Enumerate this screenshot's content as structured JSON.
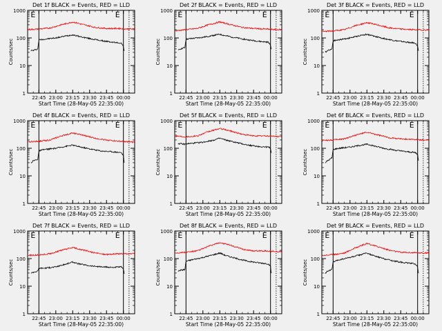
{
  "colors": {
    "background": "#f0f0f0",
    "events": "#000000",
    "lld": "#ff0000",
    "axis": "#000000"
  },
  "chart_data": [
    {
      "type": "line",
      "title": "Det 1f BLACK = Events, RED = LLD",
      "xlabel": "Start Time (28-May-05 22:35:00)",
      "ylabel": "Counts/sec",
      "y_scale": "log",
      "ylim": [
        1,
        1000
      ],
      "xlim": [
        "22:35",
        "00:10"
      ],
      "x_ticks": [
        "22:45",
        "23:00",
        "23:15",
        "23:30",
        "23:45",
        "00:00"
      ],
      "y_ticks": [
        "1",
        "10",
        "100",
        "1000"
      ],
      "markers": [
        {
          "label": "E",
          "time": "22:45",
          "style": "solid"
        },
        {
          "label": "E",
          "time": "00:00",
          "style": "solid"
        },
        {
          "label": "",
          "time": "00:05",
          "style": "dotted"
        }
      ],
      "series": [
        {
          "name": "Events",
          "color": "#000000",
          "x": [
            "22:38",
            "22:40",
            "22:44",
            "22:45",
            "22:50",
            "23:00",
            "23:10",
            "23:15",
            "23:20",
            "23:30",
            "23:40",
            "23:50",
            "23:58",
            "24:00",
            "24:01"
          ],
          "y": [
            35,
            35,
            40,
            85,
            90,
            100,
            120,
            130,
            115,
            95,
            80,
            70,
            65,
            50,
            30
          ]
        },
        {
          "name": "LLD",
          "color": "#ff0000",
          "x": [
            "22:35",
            "22:45",
            "22:55",
            "23:05",
            "23:15",
            "23:25",
            "23:35",
            "23:45",
            "23:55",
            "00:05",
            "00:10"
          ],
          "y": [
            200,
            210,
            230,
            300,
            380,
            300,
            240,
            220,
            220,
            210,
            210
          ]
        }
      ]
    },
    {
      "type": "line",
      "title": "Det 2f BLACK = Events, RED = LLD",
      "xlabel": "Start Time (28-May-05 22:35:00)",
      "ylabel": "Counts/sec",
      "y_scale": "log",
      "ylim": [
        1,
        1000
      ],
      "xlim": [
        "22:35",
        "00:10"
      ],
      "x_ticks": [
        "22:45",
        "23:00",
        "23:15",
        "23:30",
        "23:45",
        "00:00"
      ],
      "y_ticks": [
        "1",
        "10",
        "100",
        "1000"
      ],
      "markers": [
        {
          "label": "E",
          "time": "22:45",
          "style": "solid"
        },
        {
          "label": "E",
          "time": "00:00",
          "style": "solid"
        },
        {
          "label": "",
          "time": "00:05",
          "style": "dotted"
        }
      ],
      "series": [
        {
          "name": "Events",
          "color": "#000000",
          "x": [
            "22:38",
            "22:40",
            "22:44",
            "22:45",
            "22:50",
            "23:00",
            "23:10",
            "23:15",
            "23:20",
            "23:30",
            "23:40",
            "23:50",
            "23:58",
            "24:00",
            "24:01"
          ],
          "y": [
            35,
            40,
            45,
            90,
            95,
            105,
            125,
            135,
            120,
            100,
            85,
            75,
            70,
            55,
            35
          ]
        },
        {
          "name": "LLD",
          "color": "#ff0000",
          "x": [
            "22:35",
            "22:45",
            "22:55",
            "23:05",
            "23:15",
            "23:25",
            "23:35",
            "23:45",
            "23:55",
            "00:05",
            "00:10"
          ],
          "y": [
            180,
            200,
            220,
            300,
            380,
            300,
            240,
            220,
            210,
            200,
            200
          ]
        }
      ]
    },
    {
      "type": "line",
      "title": "Det 3f BLACK = Events, RED = LLD",
      "xlabel": "Start Time (28-May-05 22:35:00)",
      "ylabel": "Counts/sec",
      "y_scale": "log",
      "ylim": [
        1,
        1000
      ],
      "xlim": [
        "22:35",
        "00:10"
      ],
      "x_ticks": [
        "22:45",
        "23:00",
        "23:15",
        "23:30",
        "23:45",
        "00:00"
      ],
      "y_ticks": [
        "1",
        "10",
        "100",
        "1000"
      ],
      "markers": [
        {
          "label": "E",
          "time": "22:45",
          "style": "solid"
        },
        {
          "label": "E",
          "time": "00:00",
          "style": "solid"
        },
        {
          "label": "",
          "time": "00:05",
          "style": "dotted"
        }
      ],
      "series": [
        {
          "name": "Events",
          "color": "#000000",
          "x": [
            "22:38",
            "22:40",
            "22:44",
            "22:45",
            "22:50",
            "23:00",
            "23:10",
            "23:15",
            "23:20",
            "23:30",
            "23:40",
            "23:50",
            "23:58",
            "24:00",
            "24:01"
          ],
          "y": [
            30,
            35,
            40,
            80,
            85,
            100,
            125,
            135,
            120,
            95,
            80,
            70,
            65,
            50,
            30
          ]
        },
        {
          "name": "LLD",
          "color": "#ff0000",
          "x": [
            "22:35",
            "22:45",
            "22:55",
            "23:05",
            "23:15",
            "23:25",
            "23:35",
            "23:45",
            "23:55",
            "00:05",
            "00:10"
          ],
          "y": [
            170,
            180,
            200,
            280,
            360,
            290,
            230,
            210,
            200,
            195,
            195
          ]
        }
      ]
    },
    {
      "type": "line",
      "title": "Det 4f BLACK = Events, RED = LLD",
      "xlabel": "Start Time (28-May-05 22:35:00)",
      "ylabel": "Counts/sec",
      "y_scale": "log",
      "ylim": [
        1,
        1000
      ],
      "xlim": [
        "22:35",
        "00:10"
      ],
      "x_ticks": [
        "22:45",
        "23:00",
        "23:15",
        "23:30",
        "23:45",
        "00:00"
      ],
      "y_ticks": [
        "1",
        "10",
        "100",
        "1000"
      ],
      "markers": [
        {
          "label": "E",
          "time": "22:45",
          "style": "solid"
        },
        {
          "label": "E",
          "time": "00:00",
          "style": "solid"
        },
        {
          "label": "",
          "time": "00:05",
          "style": "dotted"
        }
      ],
      "series": [
        {
          "name": "Events",
          "color": "#000000",
          "x": [
            "22:38",
            "22:40",
            "22:44",
            "22:45",
            "22:50",
            "23:00",
            "23:10",
            "23:15",
            "23:20",
            "23:30",
            "23:40",
            "23:50",
            "23:58",
            "24:00",
            "24:01"
          ],
          "y": [
            30,
            35,
            40,
            80,
            90,
            100,
            120,
            130,
            115,
            95,
            80,
            75,
            70,
            55,
            25
          ]
        },
        {
          "name": "LLD",
          "color": "#ff0000",
          "x": [
            "22:35",
            "22:45",
            "22:55",
            "23:05",
            "23:15",
            "23:25",
            "23:35",
            "23:45",
            "23:55",
            "00:05",
            "00:10"
          ],
          "y": [
            170,
            180,
            200,
            280,
            360,
            290,
            230,
            200,
            180,
            170,
            165
          ]
        }
      ]
    },
    {
      "type": "line",
      "title": "Det 5f BLACK = Events, RED = LLD",
      "xlabel": "Start Time (28-May-05 22:35:00)",
      "ylabel": "Counts/sec",
      "y_scale": "log",
      "ylim": [
        1,
        1000
      ],
      "xlim": [
        "22:35",
        "00:10"
      ],
      "x_ticks": [
        "22:45",
        "23:00",
        "23:15",
        "23:30",
        "23:45",
        "00:00"
      ],
      "y_ticks": [
        "1",
        "10",
        "100",
        "1000"
      ],
      "markers": [
        {
          "label": "E",
          "time": "22:45",
          "style": "solid"
        },
        {
          "label": "E",
          "time": "00:00",
          "style": "solid"
        },
        {
          "label": "",
          "time": "00:05",
          "style": "dotted"
        }
      ],
      "series": [
        {
          "name": "Events",
          "color": "#000000",
          "x": [
            "22:38",
            "22:40",
            "22:44",
            "22:45",
            "22:50",
            "23:00",
            "23:10",
            "23:15",
            "23:20",
            "23:30",
            "23:40",
            "23:50",
            "23:58",
            "24:00",
            "24:01"
          ],
          "y": [
            150,
            145,
            140,
            145,
            150,
            165,
            200,
            230,
            200,
            160,
            130,
            115,
            110,
            100,
            60
          ]
        },
        {
          "name": "LLD",
          "color": "#ff0000",
          "x": [
            "22:35",
            "22:45",
            "22:55",
            "23:05",
            "23:15",
            "23:25",
            "23:35",
            "23:45",
            "23:55",
            "00:05",
            "00:10"
          ],
          "y": [
            280,
            260,
            280,
            400,
            520,
            420,
            320,
            280,
            280,
            270,
            260
          ]
        }
      ]
    },
    {
      "type": "line",
      "title": "Det 6f BLACK = Events, RED = LLD",
      "xlabel": "Start Time (28-May-05 22:35:00)",
      "ylabel": "Counts/sec",
      "y_scale": "log",
      "ylim": [
        1,
        1000
      ],
      "xlim": [
        "22:35",
        "00:10"
      ],
      "x_ticks": [
        "22:45",
        "23:00",
        "23:15",
        "23:30",
        "23:45",
        "00:00"
      ],
      "y_ticks": [
        "1",
        "10",
        "100",
        "1000"
      ],
      "markers": [
        {
          "label": "E",
          "time": "22:45",
          "style": "solid"
        },
        {
          "label": "E",
          "time": "00:00",
          "style": "solid"
        },
        {
          "label": "",
          "time": "00:05",
          "style": "dotted"
        }
      ],
      "series": [
        {
          "name": "Events",
          "color": "#000000",
          "x": [
            "22:38",
            "22:40",
            "22:44",
            "22:45",
            "22:50",
            "23:00",
            "23:10",
            "23:15",
            "23:20",
            "23:30",
            "23:40",
            "23:50",
            "23:58",
            "24:00",
            "24:01"
          ],
          "y": [
            30,
            35,
            45,
            90,
            100,
            110,
            130,
            140,
            125,
            100,
            85,
            75,
            70,
            60,
            30
          ]
        },
        {
          "name": "LLD",
          "color": "#ff0000",
          "x": [
            "22:35",
            "22:45",
            "22:55",
            "23:05",
            "23:15",
            "23:25",
            "23:35",
            "23:45",
            "23:55",
            "00:05",
            "00:10"
          ],
          "y": [
            190,
            200,
            220,
            300,
            380,
            300,
            240,
            220,
            210,
            200,
            200
          ]
        }
      ]
    },
    {
      "type": "line",
      "title": "Det 7f BLACK = Events, RED = LLD",
      "xlabel": "Start Time (28-May-05 22:35:00)",
      "ylabel": "Counts/sec",
      "y_scale": "log",
      "ylim": [
        1,
        1000
      ],
      "xlim": [
        "22:35",
        "00:10"
      ],
      "x_ticks": [
        "22:45",
        "23:00",
        "23:15",
        "23:30",
        "23:45",
        "00:00"
      ],
      "y_ticks": [
        "1",
        "10",
        "100",
        "1000"
      ],
      "markers": [
        {
          "label": "E",
          "time": "22:45",
          "style": "solid"
        },
        {
          "label": "E",
          "time": "00:00",
          "style": "solid"
        },
        {
          "label": "",
          "time": "00:05",
          "style": "dotted"
        }
      ],
      "series": [
        {
          "name": "Events",
          "color": "#000000",
          "x": [
            "22:38",
            "22:40",
            "22:44",
            "22:45",
            "22:50",
            "23:00",
            "23:10",
            "23:15",
            "23:20",
            "23:30",
            "23:40",
            "23:50",
            "23:58",
            "24:00",
            "24:01"
          ],
          "y": [
            30,
            32,
            35,
            45,
            45,
            50,
            65,
            75,
            65,
            55,
            50,
            48,
            50,
            40,
            25
          ]
        },
        {
          "name": "LLD",
          "color": "#ff0000",
          "x": [
            "22:35",
            "22:45",
            "22:55",
            "23:05",
            "23:15",
            "23:25",
            "23:35",
            "23:45",
            "23:55",
            "00:05",
            "00:10"
          ],
          "y": [
            130,
            135,
            150,
            200,
            250,
            200,
            160,
            140,
            150,
            150,
            150
          ]
        }
      ]
    },
    {
      "type": "line",
      "title": "Det 8f BLACK = Events, RED = LLD",
      "xlabel": "Start Time (28-May-05 22:35:00)",
      "ylabel": "Counts/sec",
      "y_scale": "log",
      "ylim": [
        1,
        1000
      ],
      "xlim": [
        "22:35",
        "00:10"
      ],
      "x_ticks": [
        "22:45",
        "23:00",
        "23:15",
        "23:30",
        "23:45",
        "00:00"
      ],
      "y_ticks": [
        "1",
        "10",
        "100",
        "1000"
      ],
      "markers": [
        {
          "label": "E",
          "time": "22:45",
          "style": "solid"
        },
        {
          "label": "E",
          "time": "00:00",
          "style": "solid"
        },
        {
          "label": "",
          "time": "00:05",
          "style": "dotted"
        }
      ],
      "series": [
        {
          "name": "Events",
          "color": "#000000",
          "x": [
            "22:38",
            "22:40",
            "22:44",
            "22:45",
            "22:50",
            "23:00",
            "23:10",
            "23:15",
            "23:20",
            "23:30",
            "23:40",
            "23:50",
            "23:58",
            "24:00",
            "24:01"
          ],
          "y": [
            35,
            38,
            40,
            80,
            90,
            110,
            140,
            160,
            130,
            100,
            80,
            70,
            65,
            50,
            25
          ]
        },
        {
          "name": "LLD",
          "color": "#ff0000",
          "x": [
            "22:35",
            "22:45",
            "22:55",
            "23:05",
            "23:15",
            "23:25",
            "23:35",
            "23:45",
            "23:55",
            "00:05",
            "00:10"
          ],
          "y": [
            160,
            170,
            190,
            280,
            380,
            300,
            220,
            190,
            190,
            180,
            180
          ]
        }
      ]
    },
    {
      "type": "line",
      "title": "Det 9f BLACK = Events, RED = LLD",
      "xlabel": "Start Time (28-May-05 22:35:00)",
      "ylabel": "Counts/sec",
      "y_scale": "log",
      "ylim": [
        1,
        1000
      ],
      "xlim": [
        "22:35",
        "00:10"
      ],
      "x_ticks": [
        "22:45",
        "23:00",
        "23:15",
        "23:30",
        "23:45",
        "00:00"
      ],
      "y_ticks": [
        "1",
        "10",
        "100",
        "1000"
      ],
      "markers": [
        {
          "label": "E",
          "time": "22:45",
          "style": "solid"
        },
        {
          "label": "E",
          "time": "00:00",
          "style": "solid"
        },
        {
          "label": "",
          "time": "00:05",
          "style": "dotted"
        }
      ],
      "series": [
        {
          "name": "Events",
          "color": "#000000",
          "x": [
            "22:38",
            "22:40",
            "22:44",
            "22:45",
            "22:50",
            "23:00",
            "23:10",
            "23:15",
            "23:20",
            "23:30",
            "23:40",
            "23:50",
            "23:58",
            "24:00",
            "24:01"
          ],
          "y": [
            30,
            35,
            40,
            75,
            90,
            110,
            140,
            160,
            130,
            100,
            80,
            70,
            65,
            50,
            25
          ]
        },
        {
          "name": "LLD",
          "color": "#ff0000",
          "x": [
            "22:35",
            "22:45",
            "22:55",
            "23:05",
            "23:15",
            "23:25",
            "23:35",
            "23:45",
            "23:55",
            "00:05",
            "00:10"
          ],
          "y": [
            130,
            140,
            160,
            250,
            350,
            270,
            200,
            170,
            165,
            160,
            160
          ]
        }
      ]
    }
  ]
}
